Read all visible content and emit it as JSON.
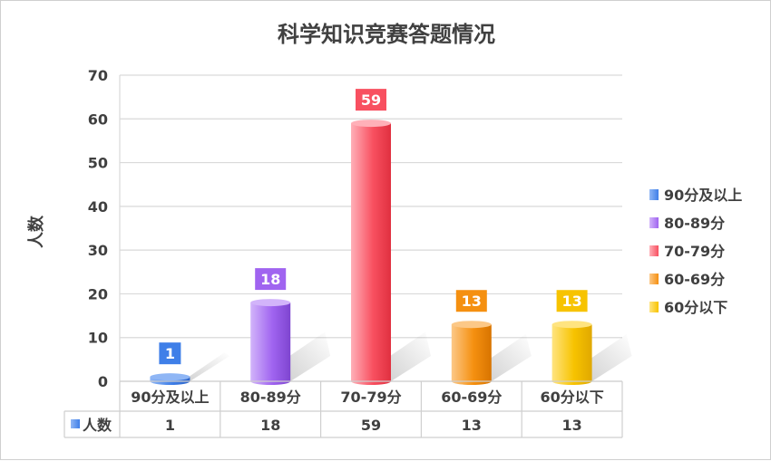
{
  "colors": {
    "text": "#404040",
    "grid": "#d9d9d9",
    "series": [
      "#3f7fe8",
      "#a064f0",
      "#f85060",
      "#f59010",
      "#f7c300"
    ],
    "series_light": [
      "#8fb6f5",
      "#d2b4fa",
      "#ffb0b8",
      "#fcc887",
      "#ffe480"
    ],
    "series_dark": [
      "#2d64c8",
      "#7e45d0",
      "#e03040",
      "#d87400",
      "#e0a800"
    ]
  },
  "chart_data": {
    "type": "bar",
    "title": "科学知识竞赛答题情况",
    "ylabel": "人数",
    "ylim": [
      0,
      70
    ],
    "yticks": [
      0,
      10,
      20,
      30,
      40,
      50,
      60,
      70
    ],
    "categories": [
      "90分及以上",
      "80-89分",
      "70-79分",
      "60-69分",
      "60分以下"
    ],
    "values": [
      1,
      18,
      59,
      13,
      13
    ],
    "data_labels": [
      "1",
      "18",
      "59",
      "13",
      "13"
    ],
    "grid": true,
    "legend": {
      "placement": "right",
      "entries": [
        "90分及以上",
        "80-89分",
        "70-79分",
        "60-69分",
        "60分以下"
      ]
    },
    "data_table": {
      "row_label": "人数",
      "cells": [
        "1",
        "18",
        "59",
        "13",
        "13"
      ]
    },
    "style": "3d-cylinder"
  }
}
